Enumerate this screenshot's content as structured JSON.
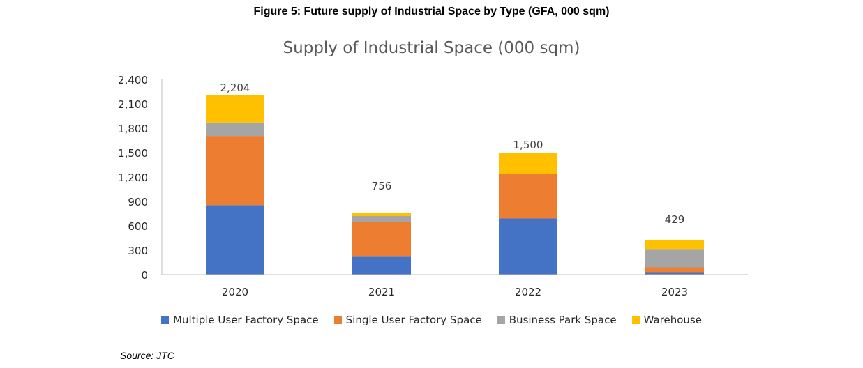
{
  "figure_title": "Figure 5: Future supply of Industrial Space by Type (GFA, 000 sqm)",
  "source": "Source: JTC",
  "chart_data": {
    "type": "bar",
    "stacked": true,
    "title": "Supply of Industrial Space (000 sqm)",
    "xlabel": "",
    "ylabel": "",
    "categories": [
      "2020",
      "2021",
      "2022",
      "2023"
    ],
    "ylim": [
      0,
      2400
    ],
    "yticks": [
      0,
      300,
      600,
      900,
      1200,
      1500,
      1800,
      2100,
      2400
    ],
    "ytick_labels": [
      "0",
      "300",
      "600",
      "900",
      "1,200",
      "1,500",
      "1,800",
      "2,100",
      "2,400"
    ],
    "grid": false,
    "legend_position": "bottom",
    "series": [
      {
        "name": "Multiple User Factory Space",
        "color": "#4472C4",
        "values": [
          855,
          220,
          690,
          30
        ]
      },
      {
        "name": "Single User Factory Space",
        "color": "#ED7D31",
        "values": [
          850,
          430,
          550,
          60
        ]
      },
      {
        "name": "Business Park Space",
        "color": "#A5A5A5",
        "values": [
          165,
          70,
          0,
          225
        ]
      },
      {
        "name": "Warehouse",
        "color": "#FFC000",
        "values": [
          334,
          36,
          260,
          114
        ]
      }
    ],
    "totals": [
      2204,
      756,
      1500,
      429
    ],
    "total_labels": [
      "2,204",
      "756",
      "1,500",
      "429"
    ]
  }
}
